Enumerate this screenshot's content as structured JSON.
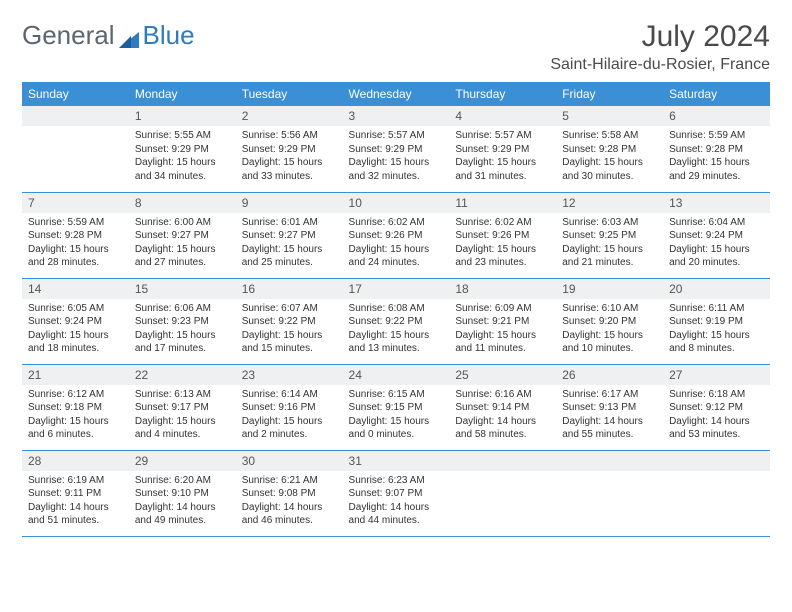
{
  "brand": {
    "part1": "General",
    "part2": "Blue"
  },
  "title": "July 2024",
  "location": "Saint-Hilaire-du-Rosier, France",
  "colors": {
    "header_bg": "#3b8fd4",
    "header_text": "#ffffff",
    "daynum_bg": "#eef0f2",
    "border": "#3b8fd4",
    "brand_gray": "#5b6770",
    "brand_blue": "#2f7bbf"
  },
  "day_headers": [
    "Sunday",
    "Monday",
    "Tuesday",
    "Wednesday",
    "Thursday",
    "Friday",
    "Saturday"
  ],
  "weeks": [
    [
      {
        "day": "",
        "sunrise": "",
        "sunset": "",
        "daylight": ""
      },
      {
        "day": "1",
        "sunrise": "Sunrise: 5:55 AM",
        "sunset": "Sunset: 9:29 PM",
        "daylight": "Daylight: 15 hours and 34 minutes."
      },
      {
        "day": "2",
        "sunrise": "Sunrise: 5:56 AM",
        "sunset": "Sunset: 9:29 PM",
        "daylight": "Daylight: 15 hours and 33 minutes."
      },
      {
        "day": "3",
        "sunrise": "Sunrise: 5:57 AM",
        "sunset": "Sunset: 9:29 PM",
        "daylight": "Daylight: 15 hours and 32 minutes."
      },
      {
        "day": "4",
        "sunrise": "Sunrise: 5:57 AM",
        "sunset": "Sunset: 9:29 PM",
        "daylight": "Daylight: 15 hours and 31 minutes."
      },
      {
        "day": "5",
        "sunrise": "Sunrise: 5:58 AM",
        "sunset": "Sunset: 9:28 PM",
        "daylight": "Daylight: 15 hours and 30 minutes."
      },
      {
        "day": "6",
        "sunrise": "Sunrise: 5:59 AM",
        "sunset": "Sunset: 9:28 PM",
        "daylight": "Daylight: 15 hours and 29 minutes."
      }
    ],
    [
      {
        "day": "7",
        "sunrise": "Sunrise: 5:59 AM",
        "sunset": "Sunset: 9:28 PM",
        "daylight": "Daylight: 15 hours and 28 minutes."
      },
      {
        "day": "8",
        "sunrise": "Sunrise: 6:00 AM",
        "sunset": "Sunset: 9:27 PM",
        "daylight": "Daylight: 15 hours and 27 minutes."
      },
      {
        "day": "9",
        "sunrise": "Sunrise: 6:01 AM",
        "sunset": "Sunset: 9:27 PM",
        "daylight": "Daylight: 15 hours and 25 minutes."
      },
      {
        "day": "10",
        "sunrise": "Sunrise: 6:02 AM",
        "sunset": "Sunset: 9:26 PM",
        "daylight": "Daylight: 15 hours and 24 minutes."
      },
      {
        "day": "11",
        "sunrise": "Sunrise: 6:02 AM",
        "sunset": "Sunset: 9:26 PM",
        "daylight": "Daylight: 15 hours and 23 minutes."
      },
      {
        "day": "12",
        "sunrise": "Sunrise: 6:03 AM",
        "sunset": "Sunset: 9:25 PM",
        "daylight": "Daylight: 15 hours and 21 minutes."
      },
      {
        "day": "13",
        "sunrise": "Sunrise: 6:04 AM",
        "sunset": "Sunset: 9:24 PM",
        "daylight": "Daylight: 15 hours and 20 minutes."
      }
    ],
    [
      {
        "day": "14",
        "sunrise": "Sunrise: 6:05 AM",
        "sunset": "Sunset: 9:24 PM",
        "daylight": "Daylight: 15 hours and 18 minutes."
      },
      {
        "day": "15",
        "sunrise": "Sunrise: 6:06 AM",
        "sunset": "Sunset: 9:23 PM",
        "daylight": "Daylight: 15 hours and 17 minutes."
      },
      {
        "day": "16",
        "sunrise": "Sunrise: 6:07 AM",
        "sunset": "Sunset: 9:22 PM",
        "daylight": "Daylight: 15 hours and 15 minutes."
      },
      {
        "day": "17",
        "sunrise": "Sunrise: 6:08 AM",
        "sunset": "Sunset: 9:22 PM",
        "daylight": "Daylight: 15 hours and 13 minutes."
      },
      {
        "day": "18",
        "sunrise": "Sunrise: 6:09 AM",
        "sunset": "Sunset: 9:21 PM",
        "daylight": "Daylight: 15 hours and 11 minutes."
      },
      {
        "day": "19",
        "sunrise": "Sunrise: 6:10 AM",
        "sunset": "Sunset: 9:20 PM",
        "daylight": "Daylight: 15 hours and 10 minutes."
      },
      {
        "day": "20",
        "sunrise": "Sunrise: 6:11 AM",
        "sunset": "Sunset: 9:19 PM",
        "daylight": "Daylight: 15 hours and 8 minutes."
      }
    ],
    [
      {
        "day": "21",
        "sunrise": "Sunrise: 6:12 AM",
        "sunset": "Sunset: 9:18 PM",
        "daylight": "Daylight: 15 hours and 6 minutes."
      },
      {
        "day": "22",
        "sunrise": "Sunrise: 6:13 AM",
        "sunset": "Sunset: 9:17 PM",
        "daylight": "Daylight: 15 hours and 4 minutes."
      },
      {
        "day": "23",
        "sunrise": "Sunrise: 6:14 AM",
        "sunset": "Sunset: 9:16 PM",
        "daylight": "Daylight: 15 hours and 2 minutes."
      },
      {
        "day": "24",
        "sunrise": "Sunrise: 6:15 AM",
        "sunset": "Sunset: 9:15 PM",
        "daylight": "Daylight: 15 hours and 0 minutes."
      },
      {
        "day": "25",
        "sunrise": "Sunrise: 6:16 AM",
        "sunset": "Sunset: 9:14 PM",
        "daylight": "Daylight: 14 hours and 58 minutes."
      },
      {
        "day": "26",
        "sunrise": "Sunrise: 6:17 AM",
        "sunset": "Sunset: 9:13 PM",
        "daylight": "Daylight: 14 hours and 55 minutes."
      },
      {
        "day": "27",
        "sunrise": "Sunrise: 6:18 AM",
        "sunset": "Sunset: 9:12 PM",
        "daylight": "Daylight: 14 hours and 53 minutes."
      }
    ],
    [
      {
        "day": "28",
        "sunrise": "Sunrise: 6:19 AM",
        "sunset": "Sunset: 9:11 PM",
        "daylight": "Daylight: 14 hours and 51 minutes."
      },
      {
        "day": "29",
        "sunrise": "Sunrise: 6:20 AM",
        "sunset": "Sunset: 9:10 PM",
        "daylight": "Daylight: 14 hours and 49 minutes."
      },
      {
        "day": "30",
        "sunrise": "Sunrise: 6:21 AM",
        "sunset": "Sunset: 9:08 PM",
        "daylight": "Daylight: 14 hours and 46 minutes."
      },
      {
        "day": "31",
        "sunrise": "Sunrise: 6:23 AM",
        "sunset": "Sunset: 9:07 PM",
        "daylight": "Daylight: 14 hours and 44 minutes."
      },
      {
        "day": "",
        "sunrise": "",
        "sunset": "",
        "daylight": ""
      },
      {
        "day": "",
        "sunrise": "",
        "sunset": "",
        "daylight": ""
      },
      {
        "day": "",
        "sunrise": "",
        "sunset": "",
        "daylight": ""
      }
    ]
  ]
}
